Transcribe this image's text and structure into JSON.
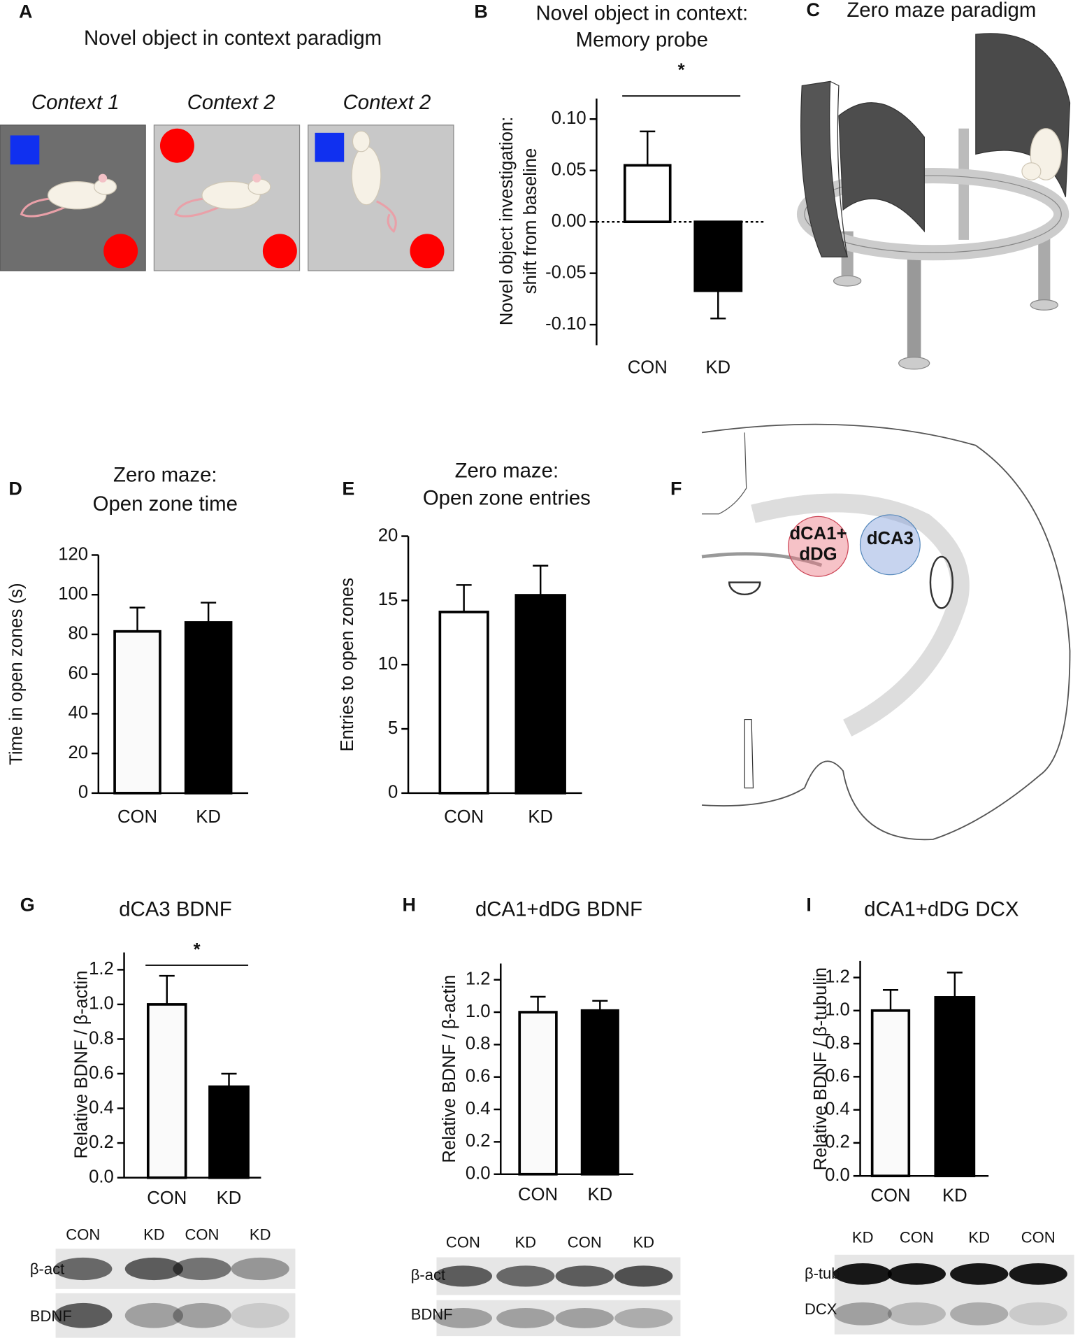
{
  "chart_data": [
    {
      "type": "bar",
      "title": [
        "Novel object in context:",
        "Memory probe"
      ],
      "ylabel": [
        "Novel object investigation:",
        "shift from baseline"
      ],
      "categories": [
        "CON",
        "KD"
      ],
      "values": [
        0.055,
        -0.067
      ],
      "errors": [
        0.033,
        0.027
      ],
      "colors": [
        "#ffffff",
        "#000000"
      ],
      "ylim": [
        -0.12,
        0.12
      ],
      "yticks": [
        {
          "value": -0.1,
          "label": "-0.10"
        },
        -0.05,
        {
          "value": 0,
          "label": "0.00"
        },
        0.05,
        {
          "value": 0.1,
          "label": "0.10"
        }
      ],
      "significance": "*"
    },
    {
      "type": "bar",
      "title": [
        "Zero maze:",
        "Open zone time"
      ],
      "ylabel": "Time in open zones (s)",
      "categories": [
        "CON",
        "KD"
      ],
      "values": [
        81.5,
        86
      ],
      "errors": [
        12,
        10
      ],
      "colors": [
        "#fafafa",
        "#000000"
      ],
      "ylim": [
        0,
        120
      ],
      "yticks": [
        0,
        20,
        40,
        60,
        80,
        100,
        120
      ]
    },
    {
      "type": "bar",
      "title": [
        "Zero maze:",
        "Open zone entries"
      ],
      "ylabel": "Entries to open zones",
      "categories": [
        "CON",
        "KD"
      ],
      "values": [
        14.1,
        15.4
      ],
      "errors": [
        2.1,
        2.3
      ],
      "colors": [
        "#ffffff",
        "#000000"
      ],
      "ylim": [
        0,
        20
      ],
      "yticks": [
        0,
        5,
        10,
        15,
        20
      ]
    },
    {
      "type": "bar",
      "title": [
        "dCA3 BDNF"
      ],
      "ylabel": "Relative BDNF / β-actin",
      "categories": [
        "CON",
        "KD"
      ],
      "values": [
        1.0,
        0.525
      ],
      "errors": [
        0.165,
        0.075
      ],
      "colors": [
        "#fafafa",
        "#000000"
      ],
      "ylim": [
        0,
        1.3
      ],
      "yticks": [
        {
          "value": 0,
          "label": "0.0"
        },
        0.2,
        0.4,
        0.6,
        0.8,
        {
          "value": 1,
          "label": "1.0"
        },
        1.2
      ],
      "significance": "*"
    },
    {
      "type": "bar",
      "title": [
        "dCA1+dDG BDNF"
      ],
      "ylabel": "Relative BDNF / β-actin",
      "categories": [
        "CON",
        "KD"
      ],
      "values": [
        1.0,
        1.01
      ],
      "errors": [
        0.095,
        0.06
      ],
      "colors": [
        "#fafafa",
        "#000000"
      ],
      "ylim": [
        0,
        1.3
      ],
      "yticks": [
        {
          "value": 0,
          "label": "0.0"
        },
        0.2,
        0.4,
        0.6,
        0.8,
        {
          "value": 1,
          "label": "1.0"
        },
        1.2
      ]
    },
    {
      "type": "bar",
      "title": [
        "dCA1+dDG DCX"
      ],
      "ylabel": "Relative BDNF / β-tubulin",
      "categories": [
        "CON",
        "KD"
      ],
      "values": [
        1.0,
        1.08
      ],
      "errors": [
        0.125,
        0.15
      ],
      "colors": [
        "#fafafa",
        "#000000"
      ],
      "ylim": [
        0,
        1.3
      ],
      "yticks": [
        {
          "value": 0,
          "label": "0.0"
        },
        0.2,
        0.4,
        0.6,
        0.8,
        {
          "value": 1,
          "label": "1.0"
        },
        1.2
      ]
    }
  ],
  "panels": {
    "letters": [
      "A",
      "B",
      "C",
      "D",
      "E",
      "F",
      "G",
      "H",
      "I"
    ],
    "A": {
      "title": "Novel object in context paradigm",
      "contexts": [
        "Context 1",
        "Context 2",
        "Context 2"
      ]
    },
    "C": {
      "title": "Zero maze paradigm"
    },
    "F": {
      "regions": [
        "dCA1+",
        "dDG",
        "dCA3"
      ]
    },
    "blots": [
      {
        "lanes": [
          "CON",
          "KD",
          "CON",
          "KD"
        ],
        "rows": [
          "β-act",
          "BDNF"
        ]
      },
      {
        "lanes": [
          "CON",
          "KD",
          "CON",
          "KD"
        ],
        "rows": [
          "β-act",
          "BDNF"
        ]
      },
      {
        "lanes": [
          "KD",
          "CON",
          "KD",
          "CON"
        ],
        "rows": [
          "β-tub",
          "DCX"
        ]
      }
    ]
  }
}
